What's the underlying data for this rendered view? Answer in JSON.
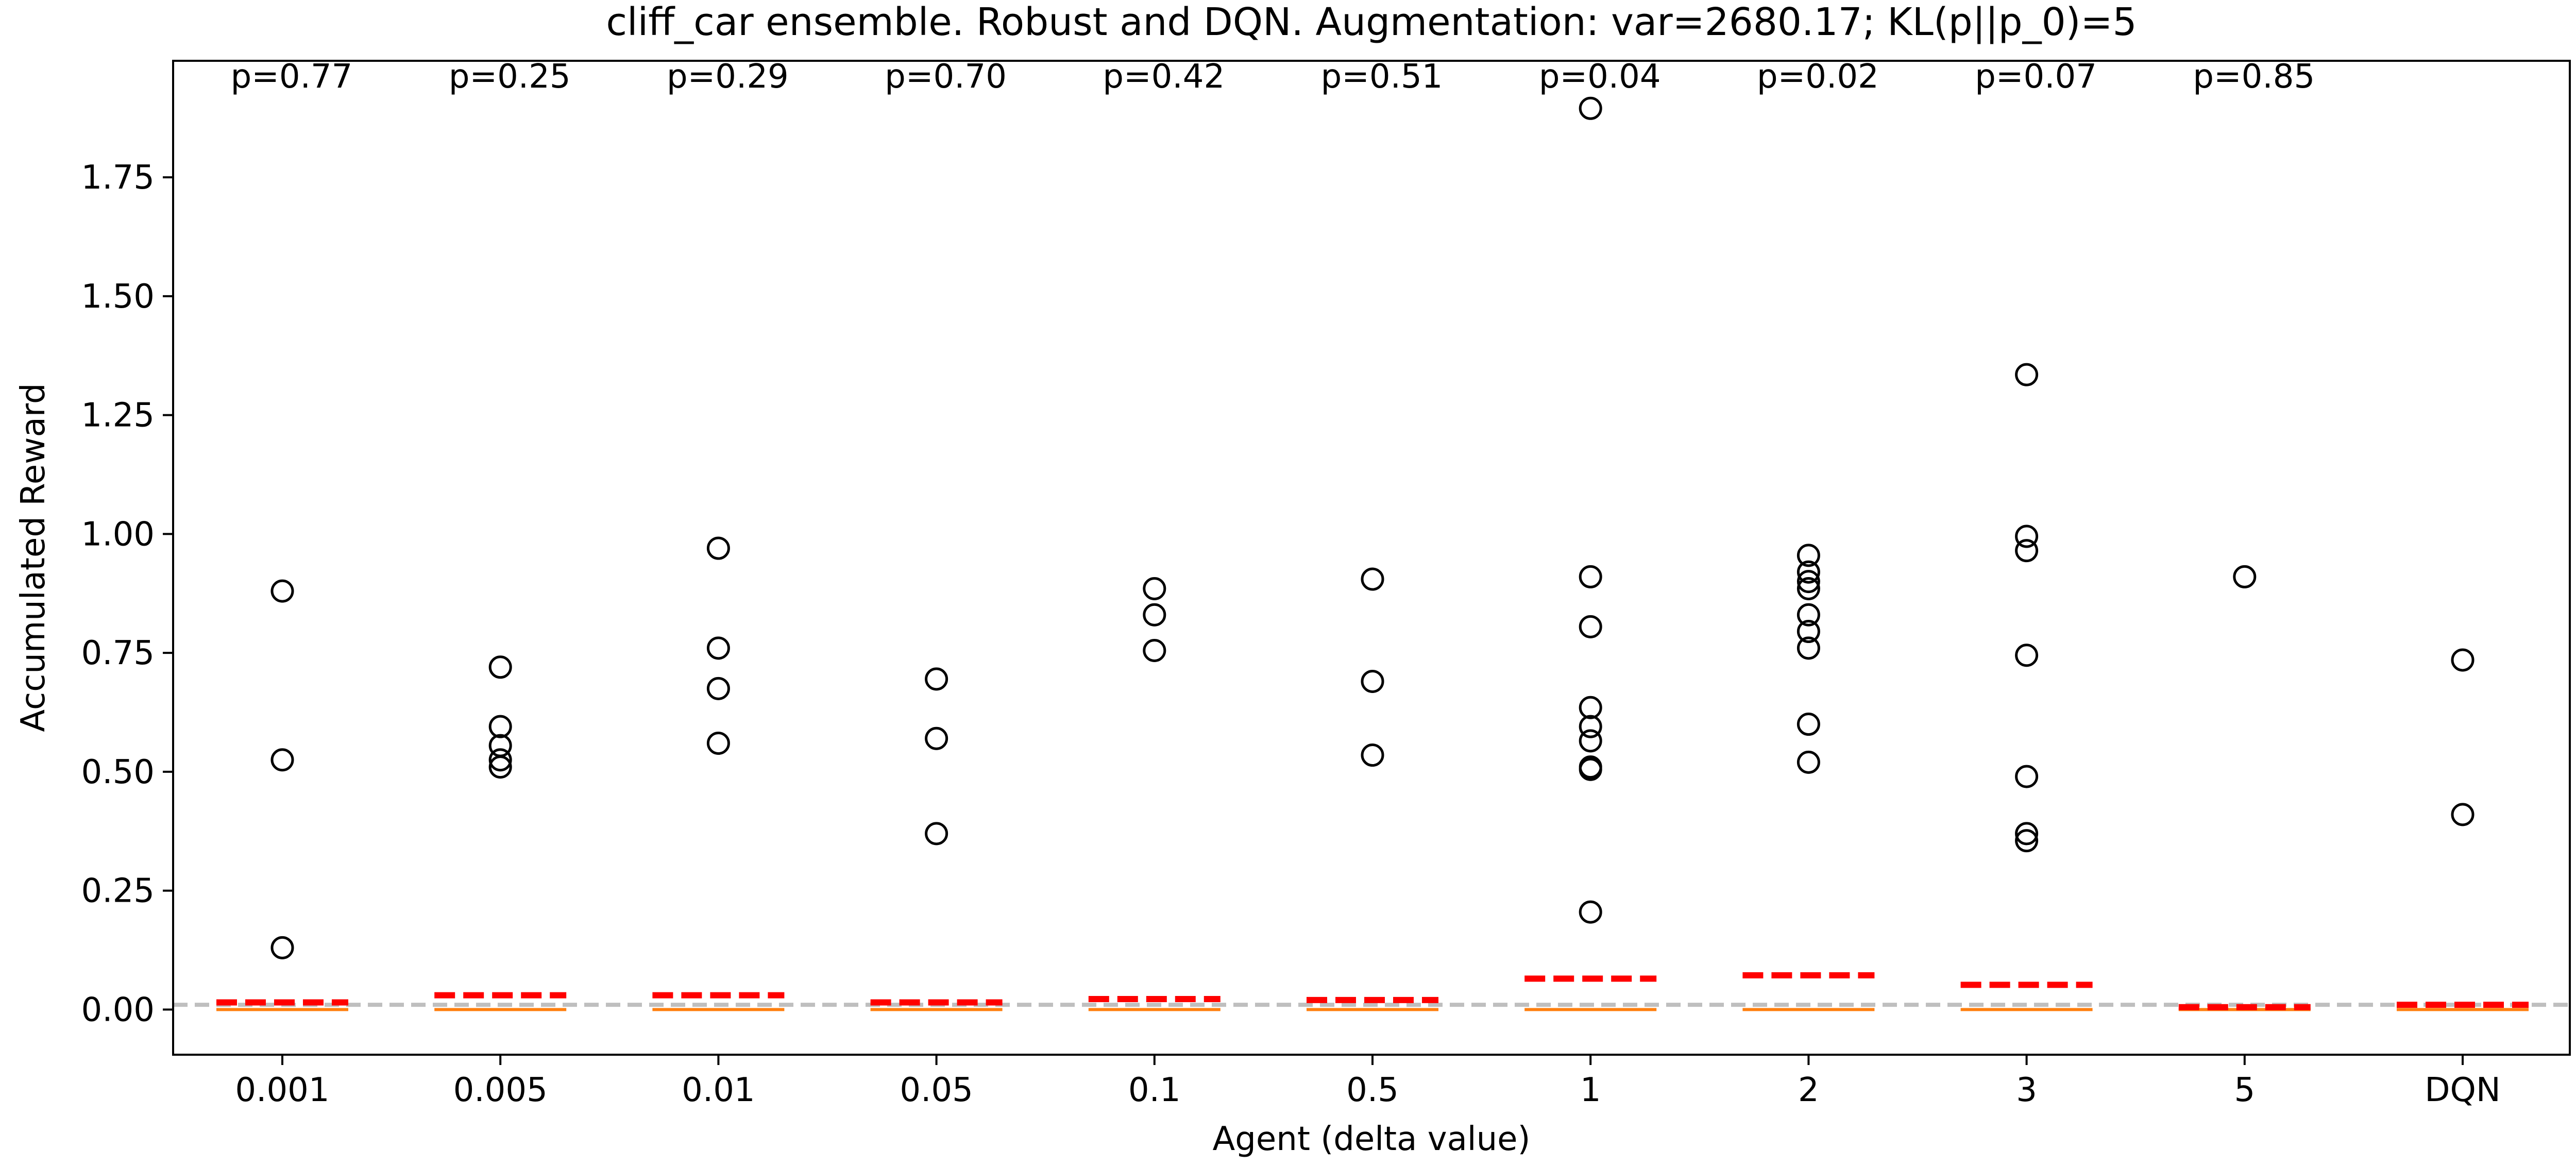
{
  "chart_data": {
    "type": "scatter",
    "title": "cliff_car ensemble. Robust and DQN. Augmentation: var=2680.17; KL(p||p_0)=5",
    "xlabel": "Agent (delta value)",
    "ylabel": "Accumulated Reward",
    "categories": [
      "0.001",
      "0.005",
      "0.01",
      "0.05",
      "0.1",
      "0.5",
      "1",
      "2",
      "3",
      "5",
      "DQN"
    ],
    "ylim": [
      -0.095,
      1.995
    ],
    "yticks": [
      "0.00",
      "0.25",
      "0.50",
      "0.75",
      "1.00",
      "1.25",
      "1.50",
      "1.75"
    ],
    "grid": false,
    "p_values": [
      "p=0.77",
      "p=0.25",
      "p=0.29",
      "p=0.70",
      "p=0.42",
      "p=0.51",
      "p=0.04",
      "p=0.02",
      "p=0.07",
      "p=0.85",
      ""
    ],
    "outliers": [
      [
        0.88,
        0.525,
        0.13
      ],
      [
        0.72,
        0.595,
        0.555,
        0.525,
        0.51
      ],
      [
        0.97,
        0.76,
        0.675,
        0.56
      ],
      [
        0.695,
        0.57,
        0.37
      ],
      [
        0.885,
        0.83,
        0.755
      ],
      [
        0.905,
        0.69,
        0.535
      ],
      [
        1.895,
        0.91,
        0.805,
        0.635,
        0.595,
        0.565,
        0.51,
        0.505,
        0.205
      ],
      [
        0.955,
        0.92,
        0.9,
        0.885,
        0.83,
        0.795,
        0.76,
        0.6,
        0.52
      ],
      [
        1.335,
        0.995,
        0.965,
        0.745,
        0.49,
        0.37,
        0.355
      ],
      [
        0.91
      ],
      [
        0.735,
        0.41
      ]
    ],
    "medians": [
      0,
      0,
      0,
      0,
      0,
      0,
      0,
      0,
      0,
      0,
      0
    ],
    "means": [
      0.015,
      0.03,
      0.03,
      0.015,
      0.022,
      0.02,
      0.065,
      0.072,
      0.052,
      0.005,
      0.01
    ],
    "reference_line": 0.01,
    "colors": {
      "outlier": "#000000",
      "median": "#ff7f0e",
      "mean": "#ff0000",
      "reference": "#bfbfbf"
    }
  }
}
